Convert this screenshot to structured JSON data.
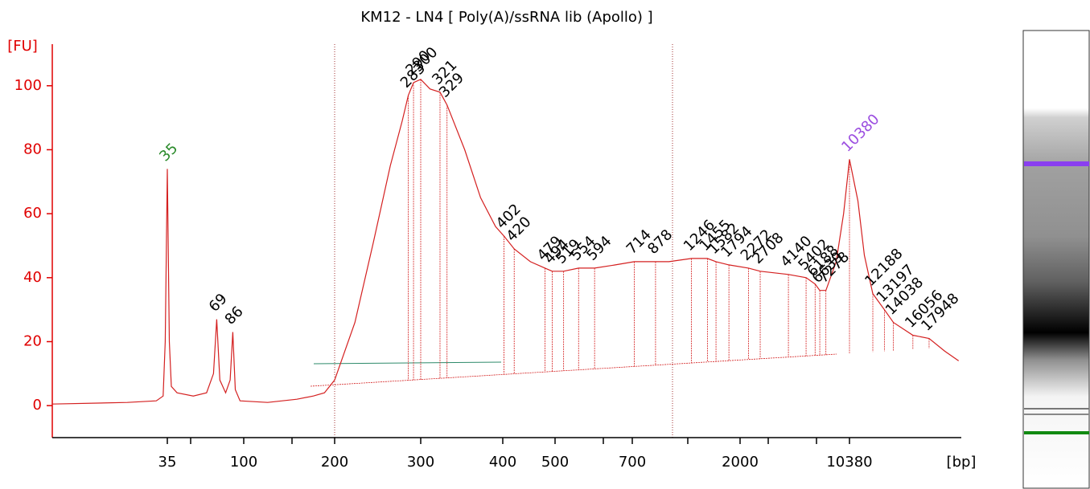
{
  "chart_data": {
    "type": "line",
    "title": "KM12 - LN4  [ Poly(A)/ssRNA lib (Apollo) ]",
    "ylabel": "[FU]",
    "xlabel": "[bp]",
    "color": "#d42020",
    "xlim": [
      7,
      22400
    ],
    "xticks": [
      35,
      100,
      200,
      300,
      400,
      500,
      700,
      2000,
      10380
    ],
    "ylim": [
      -10,
      113
    ],
    "yticks": [
      0,
      20,
      40,
      60,
      80,
      100
    ],
    "x": [
      7,
      20,
      30,
      33,
      34,
      35,
      36,
      37,
      40,
      50,
      60,
      66,
      69,
      72,
      78,
      83,
      86,
      89,
      95,
      120,
      150,
      170,
      185,
      200,
      220,
      240,
      260,
      275,
      283,
      290,
      300,
      310,
      321,
      329,
      350,
      370,
      390,
      402,
      420,
      450,
      479,
      494,
      519,
      554,
      594,
      650,
      714,
      800,
      878,
      1000,
      1246,
      1455,
      1582,
      1794,
      2272,
      2708,
      4140,
      5402,
      6188,
      6639,
      7278,
      8500,
      9500,
      10380,
      11000,
      11500,
      12188,
      13197,
      14038,
      16056,
      17948,
      20000,
      22000
    ],
    "values": [
      0.5,
      1,
      1.5,
      3,
      20,
      74,
      20,
      6,
      4,
      3,
      4,
      10,
      27,
      8,
      4,
      8,
      23,
      5,
      1.5,
      1,
      2,
      3,
      4,
      8,
      26,
      51,
      75,
      89,
      97,
      101,
      102,
      99,
      98,
      94,
      80,
      65,
      56,
      53,
      49,
      45,
      43,
      42,
      42,
      43,
      43,
      44,
      45,
      45,
      45,
      45,
      46,
      46,
      45,
      44,
      43,
      42,
      41,
      40,
      38,
      36,
      36,
      45,
      60,
      77,
      64,
      47,
      35,
      30,
      26,
      22,
      21,
      17,
      14
    ],
    "peaks": [
      35,
      69,
      86,
      283,
      290,
      300,
      321,
      329,
      402,
      420,
      479,
      494,
      519,
      554,
      594,
      714,
      878,
      1246,
      1455,
      1582,
      1794,
      2272,
      2708,
      4140,
      5402,
      6188,
      6639,
      7278,
      10380,
      12188,
      13197,
      14038,
      16056,
      17948
    ],
    "peak_colors": [
      "#2a8a2a",
      "#000000",
      "#000000",
      "#000000",
      "#000000",
      "#000000",
      "#000000",
      "#000000",
      "#000000",
      "#000000",
      "#000000",
      "#000000",
      "#000000",
      "#000000",
      "#000000",
      "#000000",
      "#000000",
      "#000000",
      "#000000",
      "#000000",
      "#000000",
      "#000000",
      "#000000",
      "#000000",
      "#000000",
      "#000000",
      "#000000",
      "#000000",
      "#9b4de0",
      "#000000",
      "#000000",
      "#000000",
      "#000000",
      "#000000"
    ]
  }
}
